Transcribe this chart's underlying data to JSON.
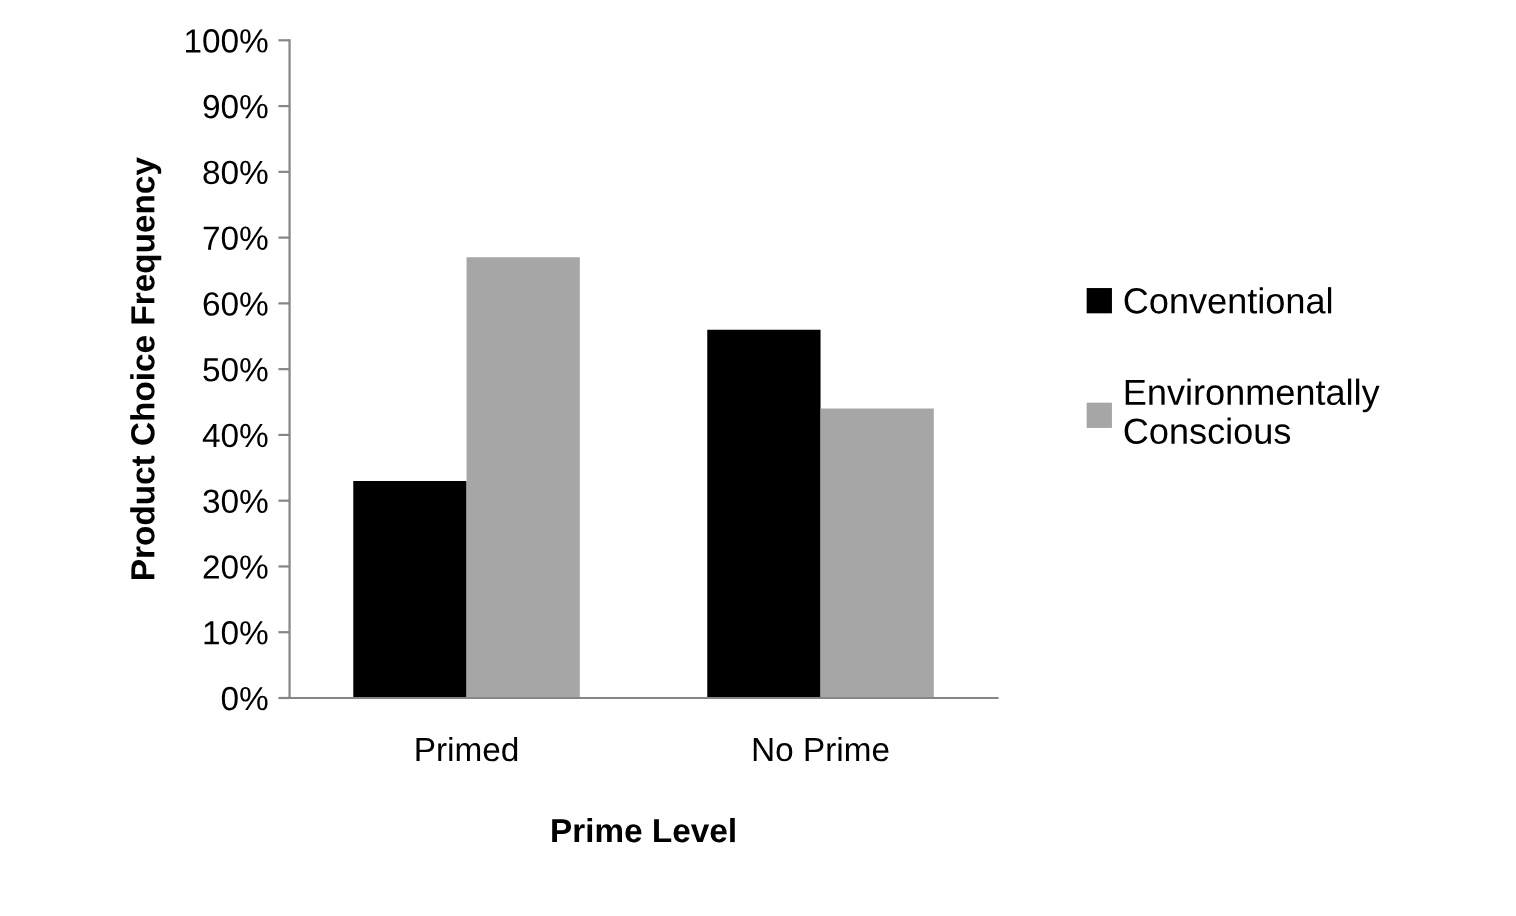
{
  "chart_data": {
    "type": "bar",
    "xlabel": "Prime Level",
    "ylabel": "Product Choice Frequency",
    "categories": [
      "Primed",
      "No Prime"
    ],
    "series": [
      {
        "name": "Conventional",
        "color": "#000000",
        "values": [
          33,
          56
        ]
      },
      {
        "name": "Environmentally Conscious",
        "color": "#a6a6a6",
        "values": [
          67,
          44
        ]
      }
    ],
    "ylim": [
      0,
      100
    ],
    "yticks": [
      {
        "value": 0,
        "label": "0%"
      },
      {
        "value": 10,
        "label": "10%"
      },
      {
        "value": 20,
        "label": "20%"
      },
      {
        "value": 30,
        "label": "30%"
      },
      {
        "value": 40,
        "label": "40%"
      },
      {
        "value": 50,
        "label": "50%"
      },
      {
        "value": 60,
        "label": "60%"
      },
      {
        "value": 70,
        "label": "70%"
      },
      {
        "value": 80,
        "label": "80%"
      },
      {
        "value": 90,
        "label": "90%"
      },
      {
        "value": 100,
        "label": "100%"
      }
    ],
    "grid": false,
    "legend": "right"
  }
}
